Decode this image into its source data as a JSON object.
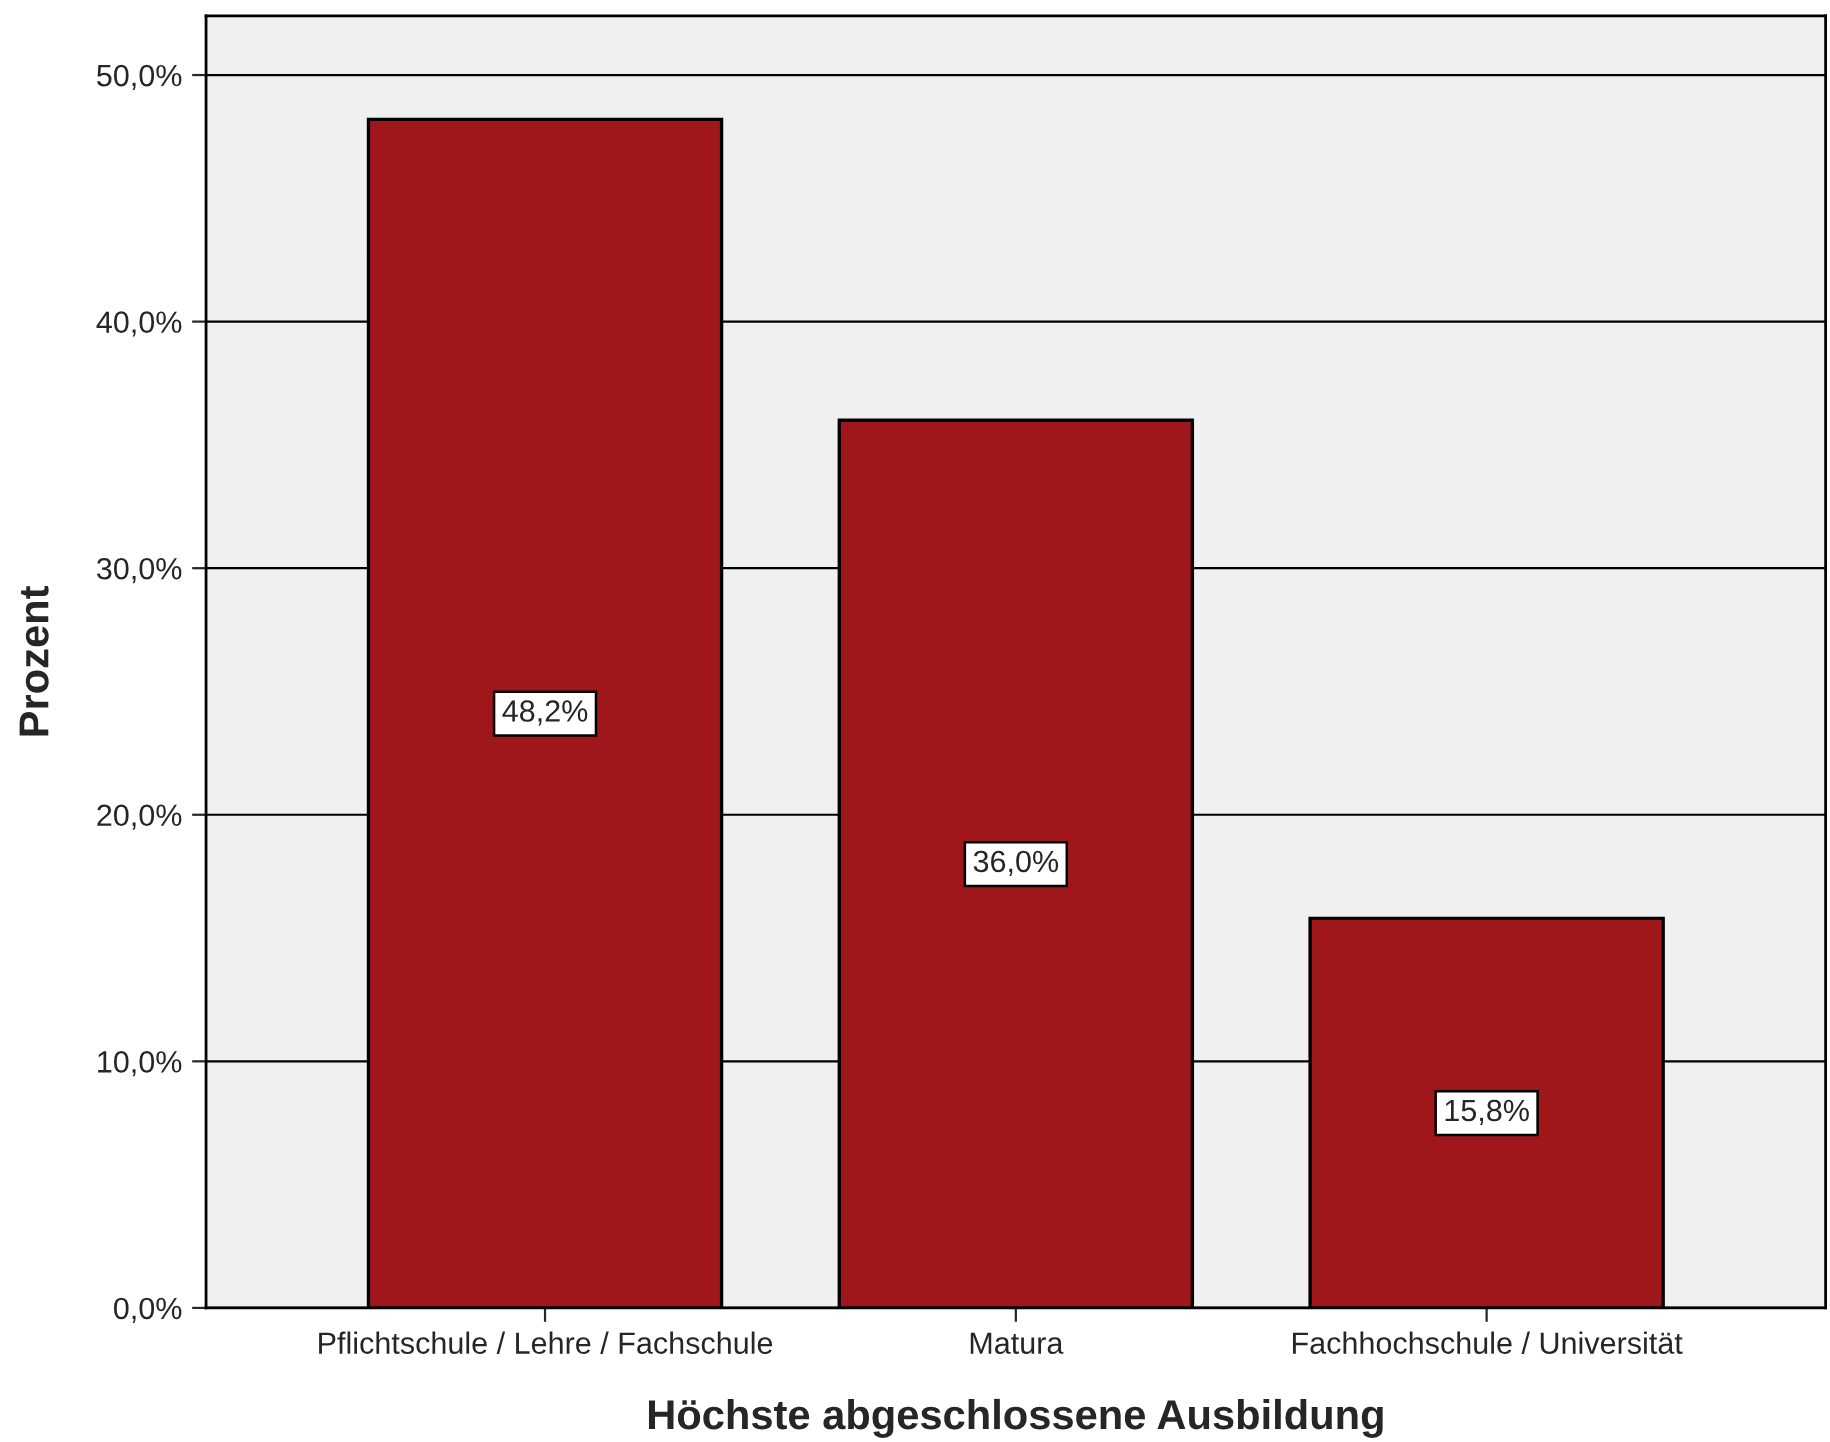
{
  "chart_data": {
    "type": "bar",
    "xlabel": "Höchste abgeschlossene Ausbildung",
    "ylabel": "Prozent",
    "categories": [
      "Pflichtschule / Lehre / Fachschule",
      "Matura",
      "Fachhochschule / Universität"
    ],
    "values": [
      48.2,
      36.0,
      15.8
    ],
    "color": "#a0171b",
    "value_labels": [
      "48,2%",
      "36,0%",
      "15,8%"
    ],
    "ylim": [
      0,
      52.4
    ],
    "yticks": [
      {
        "value": 0,
        "label": "0,0%"
      },
      {
        "value": 10,
        "label": "10,0%"
      },
      {
        "value": 20,
        "label": "20,0%"
      },
      {
        "value": 30,
        "label": "30,0%"
      },
      {
        "value": 40,
        "label": "40,0%"
      },
      {
        "value": 50,
        "label": "50,0%"
      }
    ],
    "grid": "y"
  }
}
